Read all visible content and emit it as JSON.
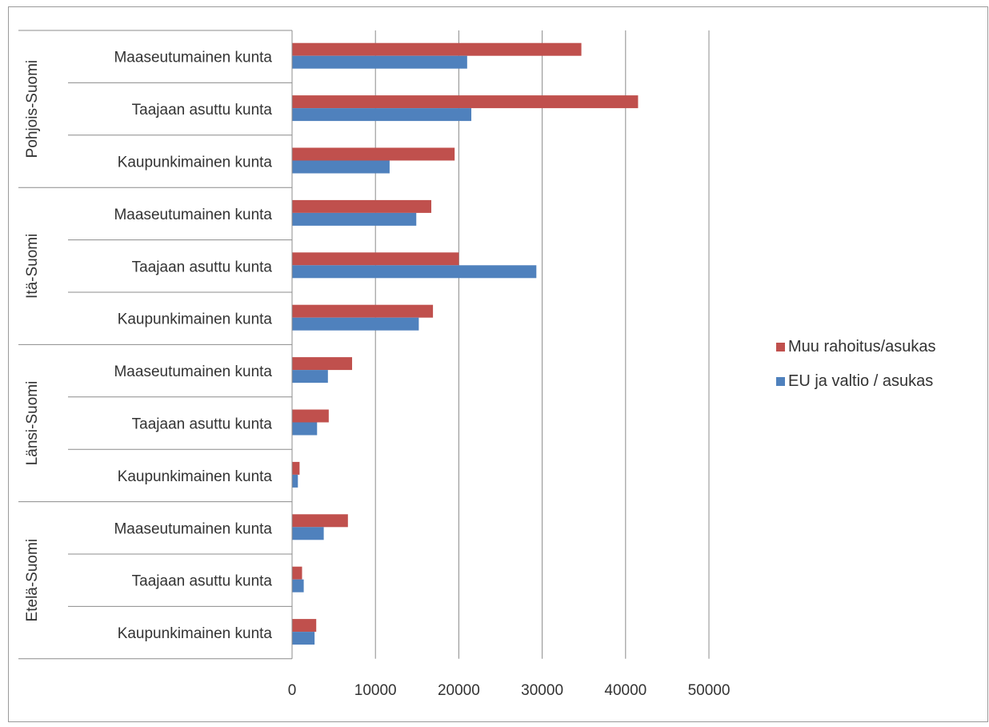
{
  "chart_data": {
    "type": "bar",
    "orientation": "horizontal",
    "groups": [
      {
        "name": "Pohjois-Suomi",
        "categories": [
          "Maaseutumainen kunta",
          "Taajaan asuttu kunta",
          "Kaupunkimainen kunta"
        ]
      },
      {
        "name": "Itä-Suomi",
        "categories": [
          "Maaseutumainen kunta",
          "Taajaan asuttu kunta",
          "Kaupunkimainen kunta"
        ]
      },
      {
        "name": "Länsi-Suomi",
        "categories": [
          "Maaseutumainen kunta",
          "Taajaan asuttu kunta",
          "Kaupunkimainen kunta"
        ]
      },
      {
        "name": "Etelä-Suomi",
        "categories": [
          "Maaseutumainen kunta",
          "Taajaan asuttu kunta",
          "Kaupunkimainen kunta"
        ]
      }
    ],
    "series": [
      {
        "name": "Muu rahoitus/asukas",
        "color": "#c0504d",
        "values": [
          34700,
          41500,
          19500,
          16700,
          20000,
          16900,
          7200,
          4400,
          900,
          6700,
          1200,
          2900
        ]
      },
      {
        "name": "EU ja valtio / asukas",
        "color": "#4f81bd",
        "values": [
          21000,
          21500,
          11700,
          14900,
          29300,
          15200,
          4300,
          3000,
          700,
          3800,
          1400,
          2700
        ]
      }
    ],
    "xlim": [
      0,
      50000
    ],
    "x_ticks": [
      "0",
      "10000",
      "20000",
      "30000",
      "40000",
      "50000"
    ],
    "grid": true,
    "legend_position": "right",
    "title": "",
    "xlabel": "",
    "ylabel": ""
  }
}
